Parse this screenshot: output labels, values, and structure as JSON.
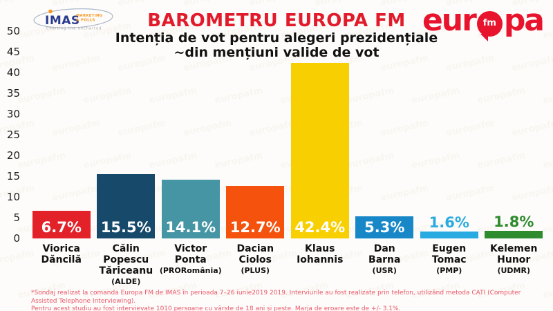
{
  "header": {
    "imas_logo": {
      "name": "IMAS",
      "sub1": "MARKETING",
      "sub2": "& POLLS",
      "tagline": "Charting the uncharted"
    },
    "title": "BAROMETRU EUROPA FM",
    "subtitle_line1": "Intenția de vot pentru alegeri prezidențiale",
    "subtitle_line2": "~din mențiuni valide de vot",
    "europafm_logo": {
      "part1": "eur",
      "circle": "fm",
      "part2": "pa"
    }
  },
  "colors": {
    "title_red": "#e11b2b",
    "footnote_red": "#ea5668",
    "europafm_red": "#e8142d",
    "imas_navy": "#2a3b8f",
    "imas_orange": "#f7941d"
  },
  "chart_data": {
    "type": "bar",
    "title": "BAROMETRU EUROPA FM",
    "subtitle": "Intenția de vot pentru alegeri prezidențiale ~din mențiuni valide de vot",
    "xlabel": "",
    "ylabel": "",
    "ylim": [
      0,
      50
    ],
    "yticks": [
      50,
      45,
      40,
      35,
      30,
      25,
      20,
      15,
      10,
      5,
      0
    ],
    "grid": false,
    "legend": "none",
    "categories": [
      "Viorica Dăncilă",
      "Călin Popescu Tăriceanu (ALDE)",
      "Victor Ponta (PRORomânia)",
      "Dacian Ciolos (PLUS)",
      "Klaus Iohannis",
      "Dan Barna (USR)",
      "Eugen Tomac (PMP)",
      "Kelemen Hunor (UDMR)"
    ],
    "values": [
      6.7,
      15.5,
      14.1,
      12.7,
      42.4,
      5.3,
      1.6,
      1.8
    ],
    "candidates": [
      {
        "id": "viorica-dancila",
        "name_lines": [
          "Viorica",
          "Dăncilă"
        ],
        "party": "",
        "value": 6.7,
        "value_label": "6.7%",
        "color": "#e32129",
        "value_label_position": "inside"
      },
      {
        "id": "calin-popescu-tariceanu",
        "name_lines": [
          "Călin",
          "Popescu",
          "Tăriceanu"
        ],
        "party": "(ALDE)",
        "value": 15.5,
        "value_label": "15.5%",
        "color": "#17496b",
        "value_label_position": "inside"
      },
      {
        "id": "victor-ponta",
        "name_lines": [
          "Victor",
          "Ponta"
        ],
        "party": "(PRORomânia)",
        "value": 14.1,
        "value_label": "14.1%",
        "color": "#4595a4",
        "value_label_position": "inside"
      },
      {
        "id": "dacian-ciolos",
        "name_lines": [
          "Dacian",
          "Ciolos"
        ],
        "party": "(PLUS)",
        "value": 12.7,
        "value_label": "12.7%",
        "color": "#f4520d",
        "value_label_position": "inside"
      },
      {
        "id": "klaus-iohannis",
        "name_lines": [
          "Klaus",
          "Iohannis"
        ],
        "party": "",
        "value": 42.4,
        "value_label": "42.4%",
        "color": "#f8cf00",
        "value_label_position": "inside"
      },
      {
        "id": "dan-barna",
        "name_lines": [
          "Dan",
          "Barna"
        ],
        "party": "(USR)",
        "value": 5.3,
        "value_label": "5.3%",
        "color": "#1787c8",
        "value_label_position": "inside"
      },
      {
        "id": "eugen-tomac",
        "name_lines": [
          "Eugen",
          "Tomac"
        ],
        "party": "(PMP)",
        "value": 1.6,
        "value_label": "1.6%",
        "color": "#29abe2",
        "value_label_position": "outside"
      },
      {
        "id": "kelemen-hunor",
        "name_lines": [
          "Kelemen",
          "Hunor"
        ],
        "party": "(UDMR)",
        "value": 1.8,
        "value_label": "1.8%",
        "color": "#2e8b2e",
        "value_label_position": "outside"
      }
    ]
  },
  "footnote": {
    "line1": "*Sondaj realizat la comanda Europa FM de IMAS în perioada 7–26 iunie2019 2019. Interviurile au fost realizate prin telefon, utilizând metoda CATI (Computer Assisted Telephone Interviewing).",
    "line2": "Pentru acest studiu au fost intervievate 1010 persoane cu vârste de 18 ani și peste. Marja de eroare este de +/- 3.1%."
  }
}
